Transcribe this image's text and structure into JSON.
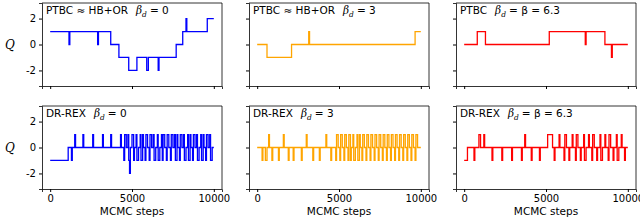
{
  "chart_data": [
    {
      "type": "line",
      "annotation": {
        "text": "PTBC ≈ HB+OR",
        "symbol": "β",
        "subscript": "d",
        "equals": "= 0"
      },
      "ylabel": "Q",
      "tick_labels": "y",
      "line_style": "steps",
      "xlim": [
        -500,
        10500
      ],
      "ylim": [
        -3.2,
        3.2
      ],
      "xticks": [
        0,
        5000,
        10000
      ],
      "yticks": [
        -2,
        0,
        2
      ],
      "x": [
        0,
        1150,
        1200,
        2900,
        2950,
        3700,
        4200,
        4800,
        5300,
        5900,
        6000,
        6600,
        6650,
        7700,
        8100,
        8300,
        8350,
        9600,
        10000
      ],
      "series": [
        {
          "color": "#0000ff",
          "values": [
            1,
            0,
            1,
            0,
            1,
            0,
            -1,
            -2,
            -1,
            -2,
            -1,
            -2,
            -1,
            0,
            1,
            2,
            1,
            2,
            2
          ]
        }
      ]
    },
    {
      "type": "line",
      "annotation": {
        "text": "PTBC ≈ HB+OR",
        "symbol": "β",
        "subscript": "d",
        "equals": "= 3"
      },
      "tick_labels": false,
      "line_style": "steps",
      "xlim": [
        -500,
        10500
      ],
      "ylim": [
        -3.2,
        3.2
      ],
      "xticks": [
        0,
        5000,
        10000
      ],
      "yticks": [
        -2,
        0,
        2
      ],
      "x": [
        0,
        600,
        2100,
        3150,
        3200,
        9650,
        10000
      ],
      "series": [
        {
          "color": "#ffa500",
          "values": [
            0,
            -1,
            0,
            1,
            0,
            1,
            1
          ]
        }
      ]
    },
    {
      "type": "line",
      "annotation": {
        "text": "PTBC",
        "symbol": "β",
        "subscript": "d",
        "equals": "= β = 6.3"
      },
      "tick_labels": false,
      "line_style": "steps",
      "xlim": [
        -500,
        10500
      ],
      "ylim": [
        -3.2,
        3.2
      ],
      "xticks": [
        0,
        5000,
        10000
      ],
      "yticks": [
        -2,
        0,
        2
      ],
      "x": [
        0,
        800,
        1300,
        5200,
        7400,
        7450,
        8600,
        9000,
        9050,
        10000
      ],
      "series": [
        {
          "color": "#ff0000",
          "values": [
            0,
            1,
            0,
            1,
            0,
            1,
            0,
            -1,
            0,
            0
          ]
        }
      ]
    },
    {
      "type": "line",
      "annotation": {
        "text": "DR-REX",
        "symbol": "β",
        "subscript": "d",
        "equals": "= 0"
      },
      "ylabel": "Q",
      "xlabel": "MCMC steps",
      "tick_labels": true,
      "line_style": "steps",
      "xlim": [
        -500,
        10500
      ],
      "ylim": [
        -3.2,
        3.2
      ],
      "xticks": [
        0,
        5000,
        10000
      ],
      "yticks": [
        -2,
        0,
        2
      ],
      "x": [
        0,
        1100,
        1300,
        1350,
        1500,
        1550,
        2000,
        2050,
        2600,
        2650,
        3200,
        3250,
        3700,
        3750,
        4300,
        4350,
        4500,
        4550,
        4650,
        4750,
        4800,
        4850,
        4900,
        5000,
        5100,
        5150,
        5250,
        5300,
        5400,
        5500,
        5550,
        5650,
        5700,
        5800,
        5850,
        5950,
        6050,
        6100,
        6200,
        6300,
        6350,
        6450,
        6550,
        6600,
        6700,
        6800,
        6850,
        6900,
        7000,
        7100,
        7150,
        7250,
        7350,
        7400,
        7500,
        7600,
        7650,
        7750,
        7800,
        7900,
        7950,
        8050,
        8150,
        8200,
        8300,
        8400,
        8450,
        8550,
        8600,
        8700,
        8750,
        8850,
        8950,
        9000,
        9100,
        9200,
        9250,
        9350,
        9400,
        9500,
        9550,
        9650,
        9750,
        9800,
        9900,
        10000
      ],
      "series": [
        {
          "color": "#0000ff",
          "values": [
            -1,
            0,
            -1,
            0,
            1,
            0,
            1,
            0,
            1,
            0,
            1,
            0,
            1,
            0,
            1,
            0,
            -1,
            1,
            0,
            1,
            -1,
            -2,
            0,
            1,
            -1,
            0,
            1,
            -1,
            0,
            1,
            -1,
            1,
            0,
            -1,
            1,
            0,
            -1,
            1,
            0,
            1,
            -1,
            0,
            1,
            -1,
            0,
            1,
            -1,
            1,
            0,
            -1,
            1,
            0,
            -1,
            1,
            0,
            1,
            -1,
            1,
            0,
            -1,
            1,
            0,
            1,
            -1,
            0,
            1,
            -1,
            1,
            0,
            -1,
            1,
            0,
            1,
            -1,
            0,
            1,
            -1,
            1,
            0,
            -1,
            1,
            0,
            1,
            -1,
            0,
            0
          ]
        }
      ]
    },
    {
      "type": "line",
      "annotation": {
        "text": "DR-REX",
        "symbol": "β",
        "subscript": "d",
        "equals": "= 3"
      },
      "xlabel": "MCMC steps",
      "tick_labels": "x",
      "line_style": "steps",
      "xlim": [
        -500,
        10500
      ],
      "ylim": [
        -3.2,
        3.2
      ],
      "xticks": [
        0,
        5000,
        10000
      ],
      "yticks": [
        -2,
        0,
        2
      ],
      "x": [
        0,
        300,
        350,
        500,
        600,
        700,
        750,
        900,
        950,
        1300,
        1350,
        1600,
        1650,
        1900,
        1950,
        2200,
        2250,
        2700,
        2750,
        3000,
        3050,
        3400,
        3450,
        3800,
        3850,
        4200,
        4250,
        4500,
        4550,
        4800,
        4850,
        4950,
        5050,
        5100,
        5200,
        5300,
        5350,
        5450,
        5550,
        5600,
        5700,
        5750,
        5850,
        5900,
        6000,
        6100,
        6150,
        6250,
        6300,
        6400,
        6450,
        6550,
        6650,
        6700,
        6800,
        6900,
        6950,
        7050,
        7150,
        7200,
        7300,
        7400,
        7450,
        7550,
        7650,
        7700,
        7800,
        7900,
        7950,
        8050,
        8150,
        8200,
        8300,
        8400,
        8450,
        8550,
        8650,
        8700,
        8800,
        8900,
        8950,
        9050,
        9150,
        9200,
        9300,
        9400,
        9450,
        9550,
        9650,
        9700,
        9800,
        10000
      ],
      "series": [
        {
          "color": "#ffa500",
          "values": [
            0,
            -1,
            0,
            -1,
            0,
            1,
            0,
            -1,
            0,
            -1,
            0,
            1,
            0,
            -1,
            0,
            -1,
            0,
            -1,
            0,
            1,
            0,
            -1,
            0,
            -1,
            0,
            1,
            0,
            -1,
            0,
            -1,
            1,
            0,
            -1,
            1,
            0,
            -1,
            1,
            0,
            -1,
            1,
            -1,
            0,
            1,
            -1,
            0,
            1,
            -1,
            1,
            0,
            -1,
            1,
            0,
            -1,
            1,
            0,
            -1,
            1,
            0,
            -1,
            1,
            0,
            -1,
            1,
            0,
            -1,
            1,
            0,
            -1,
            1,
            0,
            -1,
            1,
            0,
            -1,
            1,
            0,
            -1,
            1,
            0,
            -1,
            1,
            0,
            -1,
            1,
            0,
            -1,
            1,
            0,
            -1,
            1,
            0,
            0
          ]
        }
      ]
    },
    {
      "type": "line",
      "annotation": {
        "text": "DR-REX",
        "symbol": "β",
        "subscript": "d",
        "equals": "= β = 6.3"
      },
      "xlabel": "MCMC steps",
      "tick_labels": "x",
      "line_style": "steps",
      "xlim": [
        -500,
        10500
      ],
      "ylim": [
        -3.2,
        3.2
      ],
      "xticks": [
        0,
        5000,
        10000
      ],
      "yticks": [
        -2,
        0,
        2
      ],
      "x": [
        0,
        200,
        600,
        650,
        900,
        1000,
        1200,
        1250,
        1700,
        1750,
        2300,
        2350,
        2900,
        2950,
        3500,
        3550,
        3700,
        3750,
        4100,
        4150,
        4600,
        4650,
        5100,
        5400,
        5500,
        5550,
        5800,
        5850,
        6100,
        6150,
        6250,
        6400,
        6450,
        6600,
        6650,
        6800,
        6850,
        6950,
        7100,
        7150,
        7300,
        7350,
        7450,
        7600,
        7650,
        7800,
        7850,
        7950,
        8100,
        8150,
        8300,
        8350,
        8450,
        8600,
        8650,
        8800,
        8850,
        8950,
        9100,
        9150,
        9300,
        9350,
        9450,
        9600,
        9650,
        9800,
        9850,
        10000
      ],
      "series": [
        {
          "color": "#ff0000",
          "values": [
            -1,
            0,
            -1,
            0,
            1,
            0,
            1,
            0,
            -1,
            0,
            -1,
            0,
            -1,
            0,
            -1,
            0,
            1,
            0,
            -1,
            0,
            -1,
            0,
            1,
            0,
            -1,
            0,
            1,
            0,
            -1,
            1,
            0,
            -1,
            0,
            1,
            0,
            -1,
            1,
            0,
            -1,
            0,
            1,
            -1,
            0,
            1,
            0,
            -1,
            1,
            0,
            -1,
            0,
            1,
            -1,
            0,
            1,
            0,
            -1,
            1,
            0,
            -1,
            0,
            1,
            -1,
            0,
            1,
            0,
            -1,
            0,
            0
          ]
        }
      ]
    }
  ]
}
